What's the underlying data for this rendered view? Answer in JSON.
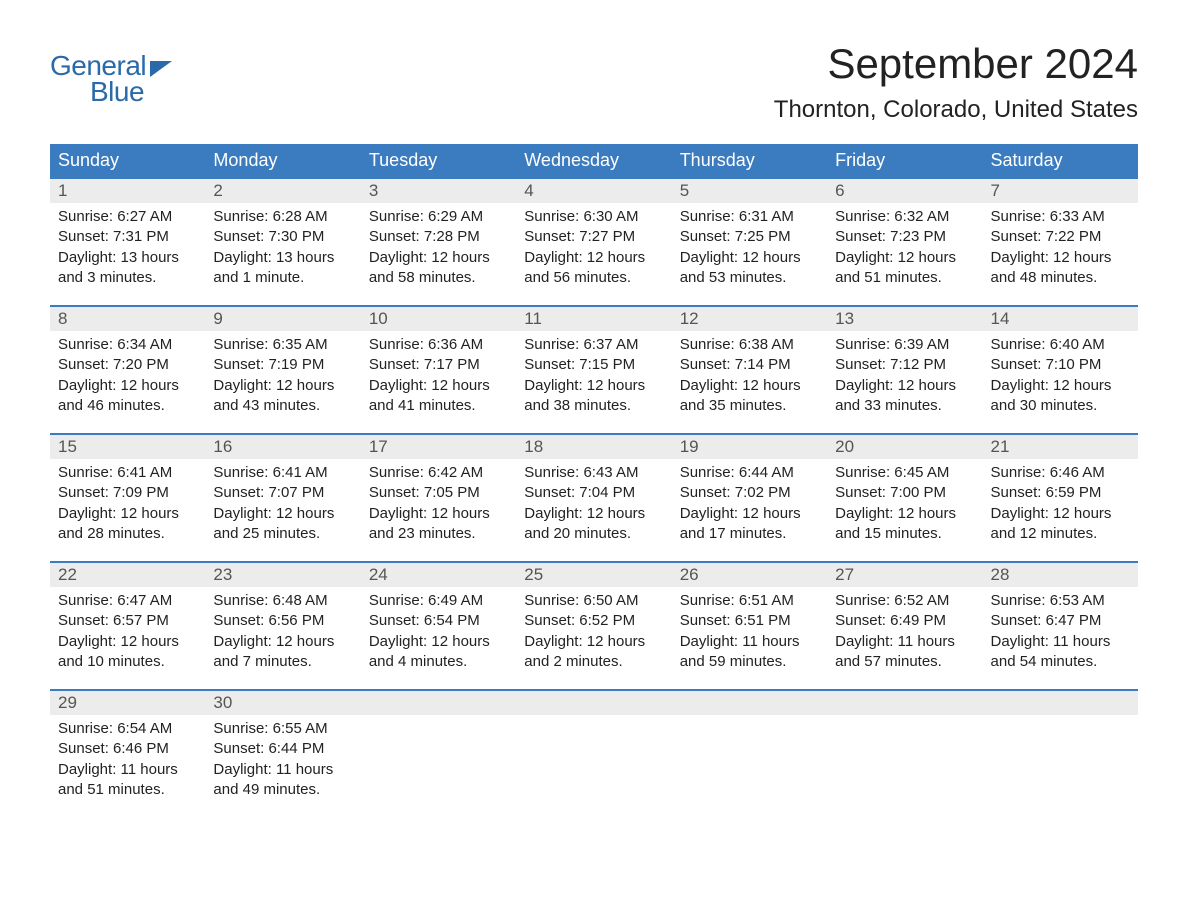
{
  "logo": {
    "line1": "General",
    "line2": "Blue"
  },
  "title": "September 2024",
  "location": "Thornton, Colorado, United States",
  "colors": {
    "header_bg": "#3b7bbf",
    "header_text": "#ffffff",
    "daynum_bg": "#ececec",
    "daynum_text": "#555555",
    "body_text": "#222222",
    "accent": "#2a6aa8",
    "row_border": "#3b7bbf"
  },
  "typography": {
    "title_fontsize": 42,
    "location_fontsize": 24,
    "dayheader_fontsize": 18,
    "daynum_fontsize": 17,
    "body_fontsize": 15
  },
  "day_headers": [
    "Sunday",
    "Monday",
    "Tuesday",
    "Wednesday",
    "Thursday",
    "Friday",
    "Saturday"
  ],
  "weeks": [
    [
      {
        "num": "1",
        "sunrise": "Sunrise: 6:27 AM",
        "sunset": "Sunset: 7:31 PM",
        "daylight1": "Daylight: 13 hours",
        "daylight2": "and 3 minutes."
      },
      {
        "num": "2",
        "sunrise": "Sunrise: 6:28 AM",
        "sunset": "Sunset: 7:30 PM",
        "daylight1": "Daylight: 13 hours",
        "daylight2": "and 1 minute."
      },
      {
        "num": "3",
        "sunrise": "Sunrise: 6:29 AM",
        "sunset": "Sunset: 7:28 PM",
        "daylight1": "Daylight: 12 hours",
        "daylight2": "and 58 minutes."
      },
      {
        "num": "4",
        "sunrise": "Sunrise: 6:30 AM",
        "sunset": "Sunset: 7:27 PM",
        "daylight1": "Daylight: 12 hours",
        "daylight2": "and 56 minutes."
      },
      {
        "num": "5",
        "sunrise": "Sunrise: 6:31 AM",
        "sunset": "Sunset: 7:25 PM",
        "daylight1": "Daylight: 12 hours",
        "daylight2": "and 53 minutes."
      },
      {
        "num": "6",
        "sunrise": "Sunrise: 6:32 AM",
        "sunset": "Sunset: 7:23 PM",
        "daylight1": "Daylight: 12 hours",
        "daylight2": "and 51 minutes."
      },
      {
        "num": "7",
        "sunrise": "Sunrise: 6:33 AM",
        "sunset": "Sunset: 7:22 PM",
        "daylight1": "Daylight: 12 hours",
        "daylight2": "and 48 minutes."
      }
    ],
    [
      {
        "num": "8",
        "sunrise": "Sunrise: 6:34 AM",
        "sunset": "Sunset: 7:20 PM",
        "daylight1": "Daylight: 12 hours",
        "daylight2": "and 46 minutes."
      },
      {
        "num": "9",
        "sunrise": "Sunrise: 6:35 AM",
        "sunset": "Sunset: 7:19 PM",
        "daylight1": "Daylight: 12 hours",
        "daylight2": "and 43 minutes."
      },
      {
        "num": "10",
        "sunrise": "Sunrise: 6:36 AM",
        "sunset": "Sunset: 7:17 PM",
        "daylight1": "Daylight: 12 hours",
        "daylight2": "and 41 minutes."
      },
      {
        "num": "11",
        "sunrise": "Sunrise: 6:37 AM",
        "sunset": "Sunset: 7:15 PM",
        "daylight1": "Daylight: 12 hours",
        "daylight2": "and 38 minutes."
      },
      {
        "num": "12",
        "sunrise": "Sunrise: 6:38 AM",
        "sunset": "Sunset: 7:14 PM",
        "daylight1": "Daylight: 12 hours",
        "daylight2": "and 35 minutes."
      },
      {
        "num": "13",
        "sunrise": "Sunrise: 6:39 AM",
        "sunset": "Sunset: 7:12 PM",
        "daylight1": "Daylight: 12 hours",
        "daylight2": "and 33 minutes."
      },
      {
        "num": "14",
        "sunrise": "Sunrise: 6:40 AM",
        "sunset": "Sunset: 7:10 PM",
        "daylight1": "Daylight: 12 hours",
        "daylight2": "and 30 minutes."
      }
    ],
    [
      {
        "num": "15",
        "sunrise": "Sunrise: 6:41 AM",
        "sunset": "Sunset: 7:09 PM",
        "daylight1": "Daylight: 12 hours",
        "daylight2": "and 28 minutes."
      },
      {
        "num": "16",
        "sunrise": "Sunrise: 6:41 AM",
        "sunset": "Sunset: 7:07 PM",
        "daylight1": "Daylight: 12 hours",
        "daylight2": "and 25 minutes."
      },
      {
        "num": "17",
        "sunrise": "Sunrise: 6:42 AM",
        "sunset": "Sunset: 7:05 PM",
        "daylight1": "Daylight: 12 hours",
        "daylight2": "and 23 minutes."
      },
      {
        "num": "18",
        "sunrise": "Sunrise: 6:43 AM",
        "sunset": "Sunset: 7:04 PM",
        "daylight1": "Daylight: 12 hours",
        "daylight2": "and 20 minutes."
      },
      {
        "num": "19",
        "sunrise": "Sunrise: 6:44 AM",
        "sunset": "Sunset: 7:02 PM",
        "daylight1": "Daylight: 12 hours",
        "daylight2": "and 17 minutes."
      },
      {
        "num": "20",
        "sunrise": "Sunrise: 6:45 AM",
        "sunset": "Sunset: 7:00 PM",
        "daylight1": "Daylight: 12 hours",
        "daylight2": "and 15 minutes."
      },
      {
        "num": "21",
        "sunrise": "Sunrise: 6:46 AM",
        "sunset": "Sunset: 6:59 PM",
        "daylight1": "Daylight: 12 hours",
        "daylight2": "and 12 minutes."
      }
    ],
    [
      {
        "num": "22",
        "sunrise": "Sunrise: 6:47 AM",
        "sunset": "Sunset: 6:57 PM",
        "daylight1": "Daylight: 12 hours",
        "daylight2": "and 10 minutes."
      },
      {
        "num": "23",
        "sunrise": "Sunrise: 6:48 AM",
        "sunset": "Sunset: 6:56 PM",
        "daylight1": "Daylight: 12 hours",
        "daylight2": "and 7 minutes."
      },
      {
        "num": "24",
        "sunrise": "Sunrise: 6:49 AM",
        "sunset": "Sunset: 6:54 PM",
        "daylight1": "Daylight: 12 hours",
        "daylight2": "and 4 minutes."
      },
      {
        "num": "25",
        "sunrise": "Sunrise: 6:50 AM",
        "sunset": "Sunset: 6:52 PM",
        "daylight1": "Daylight: 12 hours",
        "daylight2": "and 2 minutes."
      },
      {
        "num": "26",
        "sunrise": "Sunrise: 6:51 AM",
        "sunset": "Sunset: 6:51 PM",
        "daylight1": "Daylight: 11 hours",
        "daylight2": "and 59 minutes."
      },
      {
        "num": "27",
        "sunrise": "Sunrise: 6:52 AM",
        "sunset": "Sunset: 6:49 PM",
        "daylight1": "Daylight: 11 hours",
        "daylight2": "and 57 minutes."
      },
      {
        "num": "28",
        "sunrise": "Sunrise: 6:53 AM",
        "sunset": "Sunset: 6:47 PM",
        "daylight1": "Daylight: 11 hours",
        "daylight2": "and 54 minutes."
      }
    ],
    [
      {
        "num": "29",
        "sunrise": "Sunrise: 6:54 AM",
        "sunset": "Sunset: 6:46 PM",
        "daylight1": "Daylight: 11 hours",
        "daylight2": "and 51 minutes."
      },
      {
        "num": "30",
        "sunrise": "Sunrise: 6:55 AM",
        "sunset": "Sunset: 6:44 PM",
        "daylight1": "Daylight: 11 hours",
        "daylight2": "and 49 minutes."
      },
      {
        "empty": true
      },
      {
        "empty": true
      },
      {
        "empty": true
      },
      {
        "empty": true
      },
      {
        "empty": true
      }
    ]
  ]
}
